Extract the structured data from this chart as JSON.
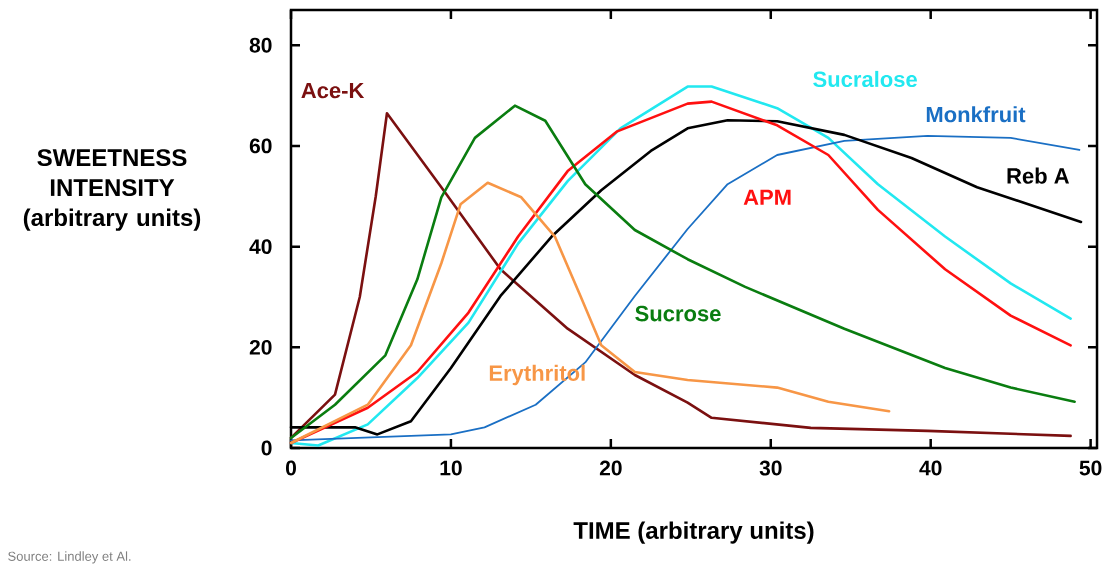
{
  "chart_data": {
    "type": "line",
    "xlabel": "TIME (arbitrary units)",
    "ylabel": "SWEETNESS INTENSITY (arbitrary units)",
    "xlim": [
      0,
      50.4
    ],
    "ylim": [
      0,
      87
    ],
    "xticks": [
      0,
      10,
      20,
      30,
      40,
      50
    ],
    "yticks": [
      0,
      20,
      40,
      60,
      80
    ],
    "grid": false,
    "legend": false,
    "marker": "none",
    "line_style": "solid",
    "annotations": [
      "Source: Lindley et Al."
    ],
    "series": [
      {
        "name": "Ace-K",
        "color": "#7b1010",
        "x": [
          0,
          2.75,
          4.3,
          5.3,
          6.0,
          9.4,
          13.1,
          17.3,
          21.5,
          24.8,
          26.3,
          32.5,
          39.8,
          48.75
        ],
        "values": [
          2,
          10.6,
          30,
          50,
          66.5,
          51.8,
          35.5,
          23.7,
          14.5,
          9,
          6,
          4,
          3.4,
          2.4
        ]
      },
      {
        "name": "Sucralose",
        "color": "#22e8f0",
        "x": [
          0,
          1.7,
          4.8,
          7.9,
          11.1,
          14.2,
          17.3,
          20.6,
          24.8,
          26.3,
          30.4,
          33.6,
          36.7,
          40.9,
          45,
          48.75
        ],
        "values": [
          1,
          0.5,
          4.7,
          13.9,
          24.9,
          40.6,
          53,
          63.5,
          71.8,
          71.8,
          67.5,
          61.6,
          52.4,
          42,
          32.7,
          25.7
        ]
      },
      {
        "name": "Monkfruit",
        "color": "#1a6fc4",
        "x": [
          0,
          10,
          12.1,
          15.3,
          18.4,
          21.5,
          24.8,
          27.3,
          30.4,
          34.6,
          39.8,
          45,
          49.3
        ],
        "values": [
          1.5,
          2.7,
          4.1,
          8.6,
          17,
          30.2,
          43.5,
          52.4,
          58.2,
          61,
          62,
          61.6,
          59.2
        ]
      },
      {
        "name": "Reb A",
        "color": "#000000",
        "x": [
          0,
          4,
          5.4,
          7.5,
          10,
          13.1,
          16.3,
          19.4,
          22.5,
          24.8,
          27.3,
          30.4,
          34.6,
          38.8,
          42.9,
          49.4
        ],
        "values": [
          4.1,
          4.1,
          2.7,
          5.3,
          15.9,
          30.2,
          42,
          51.2,
          59,
          63.5,
          65.1,
          64.9,
          62.2,
          57.6,
          51.8,
          44.9
        ]
      },
      {
        "name": "APM",
        "color": "#ff1010",
        "x": [
          0,
          4.8,
          7.9,
          11.1,
          14.2,
          17.3,
          20.4,
          24.8,
          26.3,
          30.4,
          33.6,
          36.7,
          40.9,
          45,
          48.75
        ],
        "values": [
          1,
          8,
          15.1,
          26.9,
          42,
          55,
          62.9,
          68.4,
          68.8,
          64.1,
          58.2,
          47.3,
          35.5,
          26.3,
          20.4
        ]
      },
      {
        "name": "Sucrose",
        "color": "#0a7d10",
        "x": [
          0,
          2.75,
          5.9,
          7.9,
          9.4,
          11.5,
          14.0,
          15.9,
          18.4,
          21.5,
          24.8,
          28.4,
          34.6,
          40.9,
          45,
          49
        ],
        "values": [
          2,
          8.6,
          18.4,
          33.5,
          49.8,
          61.6,
          68,
          65,
          52.4,
          43.3,
          37.5,
          32,
          23.7,
          15.9,
          12,
          9.2
        ]
      },
      {
        "name": "Erythritol",
        "color": "#f79646",
        "x": [
          0,
          4.8,
          7.5,
          9.4,
          10.6,
          12.3,
          14.4,
          16.5,
          18.1,
          19.4,
          21.5,
          24.8,
          30.4,
          33.6,
          37.4
        ],
        "values": [
          1,
          8.6,
          20.4,
          36.7,
          48.4,
          52.7,
          49.8,
          42,
          30.2,
          20.4,
          15.1,
          13.5,
          12,
          9.2,
          7.3
        ]
      }
    ]
  }
}
